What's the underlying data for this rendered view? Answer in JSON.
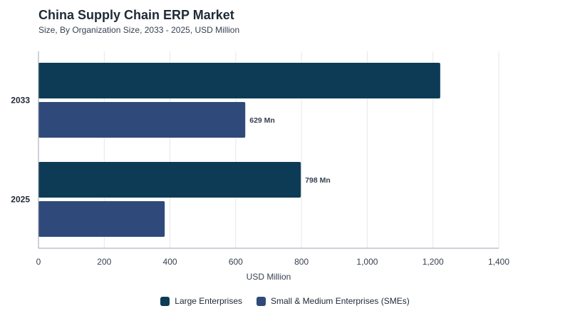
{
  "chart_data": {
    "type": "bar",
    "orientation": "horizontal",
    "title": "China Supply Chain ERP Market",
    "subtitle": "Size, By Organization Size, 2033 - 2025, USD Million",
    "xlabel": "USD Million",
    "ylabel": "",
    "xlim": [
      0,
      1400
    ],
    "xticks": [
      0,
      200,
      400,
      600,
      800,
      1000,
      1200,
      1400
    ],
    "xtick_labels": [
      "0",
      "200",
      "400",
      "600",
      "800",
      "1,000",
      "1,200",
      "1,400"
    ],
    "categories": [
      "2033",
      "2025"
    ],
    "series": [
      {
        "name": "Large Enterprises",
        "color": "#0d3b55",
        "values": [
          1222,
          798
        ],
        "data_labels": [
          "",
          "798 Mn"
        ]
      },
      {
        "name": "Small & Medium Enterprises (SMEs)",
        "color": "#2f4a7a",
        "values": [
          629,
          384
        ],
        "data_labels": [
          "629 Mn",
          ""
        ]
      }
    ],
    "grid": true,
    "legend": "bottom-center"
  }
}
